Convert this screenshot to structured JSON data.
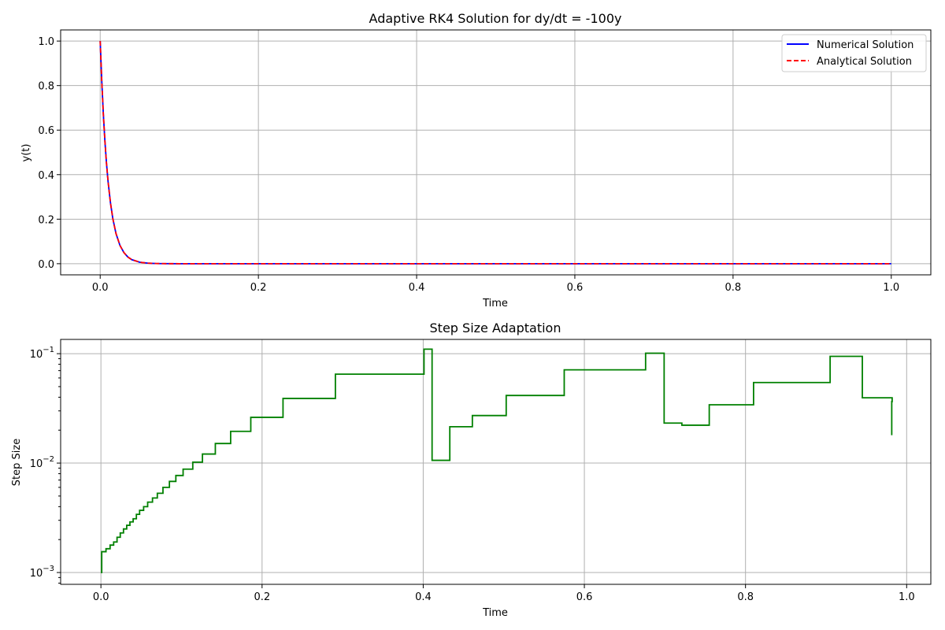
{
  "chart_data": [
    {
      "type": "line",
      "title": "Adaptive RK4 Solution for dy/dt = -100y",
      "xlabel": "Time",
      "ylabel": "y(t)",
      "xlim": [
        -0.05,
        1.05
      ],
      "ylim": [
        -0.05,
        1.05
      ],
      "xticks": [
        0.0,
        0.2,
        0.4,
        0.6,
        0.8,
        1.0
      ],
      "xtick_labels": [
        "0.0",
        "0.2",
        "0.4",
        "0.6",
        "0.8",
        "1.0"
      ],
      "yticks": [
        0.0,
        0.2,
        0.4,
        0.6,
        0.8,
        1.0
      ],
      "ytick_labels": [
        "0.0",
        "0.2",
        "0.4",
        "0.6",
        "0.8",
        "1.0"
      ],
      "grid": true,
      "legend_position": "top-right",
      "series": [
        {
          "name": "Numerical Solution",
          "color": "#0000ff",
          "style": "solid",
          "x": [
            0,
            0.002,
            0.004,
            0.006,
            0.008,
            0.01,
            0.013,
            0.016,
            0.02,
            0.025,
            0.03,
            0.035,
            0.04,
            0.05,
            0.06,
            0.07,
            0.08,
            0.1,
            0.15,
            0.2,
            0.3,
            0.4,
            0.5,
            0.6,
            0.7,
            0.8,
            0.9,
            1.0
          ],
          "y": [
            1.0,
            0.819,
            0.67,
            0.549,
            0.449,
            0.368,
            0.273,
            0.202,
            0.135,
            0.082,
            0.05,
            0.03,
            0.018,
            0.0067,
            0.0025,
            0.0009,
            0.0003,
            5e-05,
            0.0,
            0.0,
            0.0,
            0.0,
            0.0,
            0.0,
            0.0,
            0.0,
            0.0,
            0.0
          ]
        },
        {
          "name": "Analytical Solution",
          "color": "#ff0000",
          "style": "dashed",
          "x": [
            0,
            0.002,
            0.004,
            0.006,
            0.008,
            0.01,
            0.013,
            0.016,
            0.02,
            0.025,
            0.03,
            0.035,
            0.04,
            0.05,
            0.06,
            0.07,
            0.08,
            0.1,
            0.15,
            0.2,
            0.3,
            0.4,
            0.5,
            0.6,
            0.7,
            0.8,
            0.9,
            1.0
          ],
          "y": [
            1.0,
            0.819,
            0.67,
            0.549,
            0.449,
            0.368,
            0.273,
            0.202,
            0.135,
            0.082,
            0.05,
            0.03,
            0.018,
            0.0067,
            0.0025,
            0.0009,
            0.0003,
            5e-05,
            0.0,
            0.0,
            0.0,
            0.0,
            0.0,
            0.0,
            0.0,
            0.0,
            0.0,
            0.0
          ]
        }
      ]
    },
    {
      "type": "line",
      "step": "post",
      "title": "Step Size Adaptation",
      "xlabel": "Time",
      "ylabel": "Step Size",
      "yscale": "log",
      "xlim": [
        -0.05,
        1.03
      ],
      "ylim": [
        0.00078,
        0.135
      ],
      "xticks": [
        0.0,
        0.2,
        0.4,
        0.6,
        0.8,
        1.0
      ],
      "xtick_labels": [
        "0.0",
        "0.2",
        "0.4",
        "0.6",
        "0.8",
        "1.0"
      ],
      "yticks": [
        0.001,
        0.01,
        0.1
      ],
      "ytick_labels": [
        [
          "10",
          "−3"
        ],
        [
          "10",
          "−2"
        ],
        [
          "10",
          "−1"
        ]
      ],
      "grid": true,
      "series": [
        {
          "color": "#008000",
          "x": [
            0.0,
            0.001,
            0.0063,
            0.0114,
            0.0158,
            0.02,
            0.024,
            0.028,
            0.032,
            0.036,
            0.04,
            0.044,
            0.048,
            0.053,
            0.058,
            0.064,
            0.07,
            0.077,
            0.085,
            0.093,
            0.102,
            0.114,
            0.126,
            0.142,
            0.161,
            0.186,
            0.226,
            0.291,
            0.401,
            0.411,
            0.433,
            0.461,
            0.503,
            0.575,
            0.676,
            0.699,
            0.721,
            0.755,
            0.81,
            0.905,
            0.945,
            0.982
          ],
          "y": [
            0.001,
            0.00155,
            0.00165,
            0.00178,
            0.0019,
            0.0021,
            0.0023,
            0.0025,
            0.0027,
            0.0029,
            0.0031,
            0.0034,
            0.0037,
            0.004,
            0.0044,
            0.0048,
            0.0053,
            0.006,
            0.0068,
            0.0077,
            0.0088,
            0.0102,
            0.0121,
            0.0151,
            0.0195,
            0.0262,
            0.039,
            0.065,
            0.11,
            0.0106,
            0.0215,
            0.0272,
            0.0415,
            0.0712,
            0.101,
            0.0232,
            0.0222,
            0.0341,
            0.0545,
            0.0945,
            0.0395,
            0.0365
          ]
        }
      ]
    }
  ]
}
